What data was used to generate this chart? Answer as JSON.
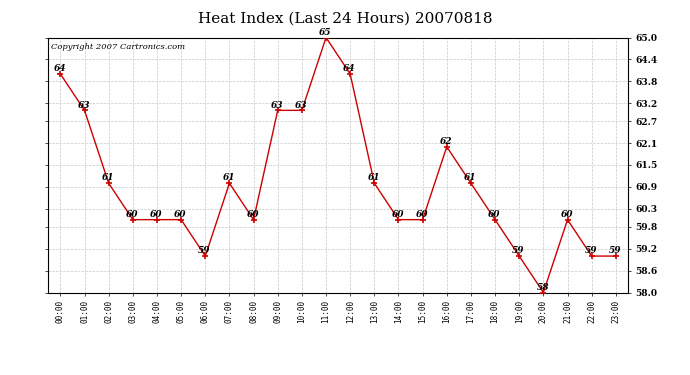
{
  "title": "Heat Index (Last 24 Hours) 20070818",
  "copyright": "Copyright 2007 Cartronics.com",
  "hours": [
    "00:00",
    "01:00",
    "02:00",
    "03:00",
    "04:00",
    "05:00",
    "06:00",
    "07:00",
    "08:00",
    "09:00",
    "10:00",
    "11:00",
    "12:00",
    "13:00",
    "14:00",
    "15:00",
    "16:00",
    "17:00",
    "18:00",
    "19:00",
    "20:00",
    "21:00",
    "22:00",
    "23:00"
  ],
  "values": [
    64,
    63,
    61,
    60,
    60,
    60,
    59,
    61,
    60,
    63,
    63,
    65,
    64,
    61,
    60,
    60,
    62,
    61,
    60,
    59,
    58,
    60,
    59,
    59
  ],
  "ylim_min": 58.0,
  "ylim_max": 65.0,
  "line_color": "#cc0000",
  "marker_color": "#cc0000",
  "bg_color": "#ffffff",
  "grid_color": "#c8c8c8",
  "title_fontsize": 11,
  "annotation_fontsize": 6.5,
  "copyright_fontsize": 6,
  "yticks": [
    58.0,
    58.6,
    59.2,
    59.8,
    60.3,
    60.9,
    61.5,
    62.1,
    62.7,
    63.2,
    63.8,
    64.4,
    65.0
  ]
}
